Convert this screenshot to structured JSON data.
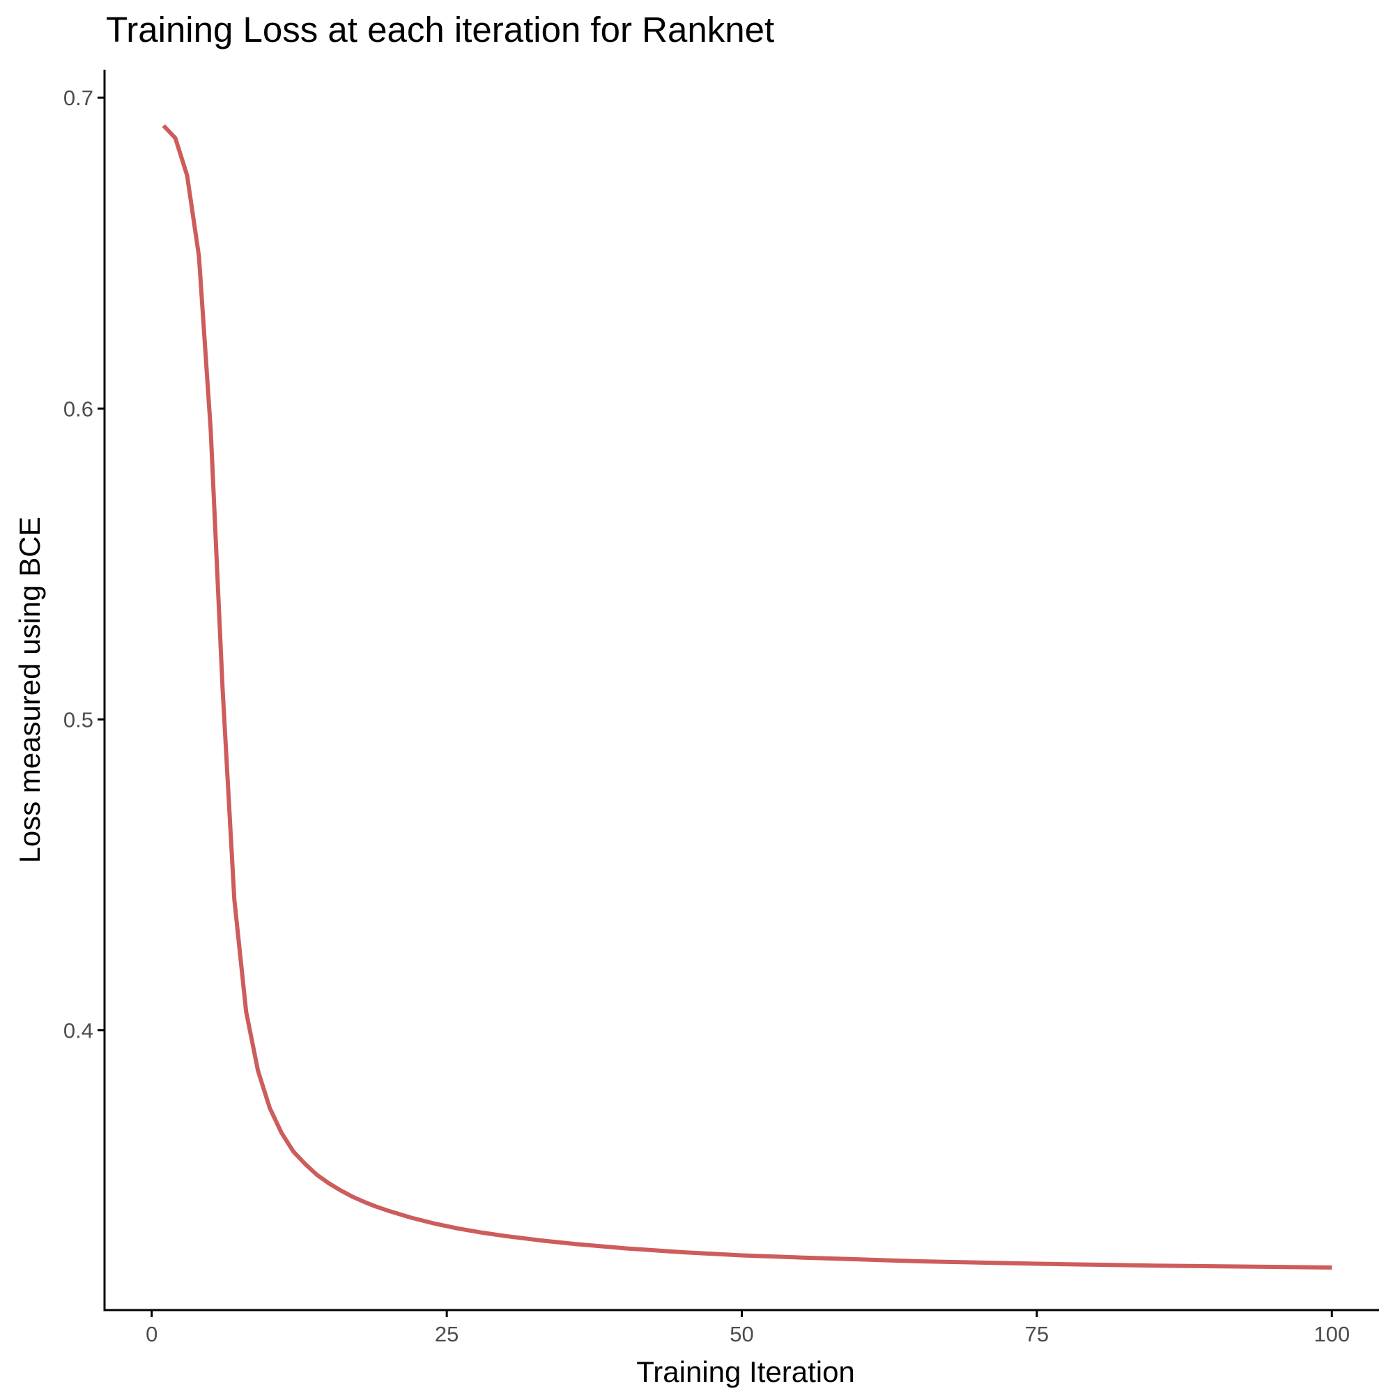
{
  "chart_data": {
    "type": "line",
    "title": "Training Loss at each iteration for Ranknet",
    "xlabel": "Training Iteration",
    "ylabel": "Loss measured using BCE",
    "xlim": [
      -4,
      104
    ],
    "ylim": [
      0.31,
      0.709
    ],
    "x_ticks": [
      0,
      25,
      50,
      75,
      100
    ],
    "x_tick_labels": [
      "0",
      "25",
      "50",
      "75",
      "100"
    ],
    "y_ticks": [
      0.4,
      0.5,
      0.6,
      0.7
    ],
    "y_tick_labels": [
      "0.4",
      "0.5",
      "0.6",
      "0.7"
    ],
    "grid": false,
    "legend": "none",
    "series": [
      {
        "color": "#cd5c5c",
        "x": [
          1,
          2,
          3,
          4,
          5,
          6,
          7,
          8,
          9,
          10,
          11,
          12,
          13,
          14,
          15,
          16,
          17,
          18,
          19,
          20,
          22,
          24,
          26,
          28,
          30,
          33,
          36,
          40,
          45,
          50,
          55,
          60,
          65,
          70,
          75,
          80,
          85,
          90,
          95,
          100
        ],
        "y": [
          0.691,
          0.687,
          0.675,
          0.649,
          0.593,
          0.51,
          0.442,
          0.406,
          0.387,
          0.375,
          0.367,
          0.361,
          0.357,
          0.3535,
          0.3508,
          0.3485,
          0.3465,
          0.3448,
          0.3433,
          0.342,
          0.3397,
          0.3378,
          0.3362,
          0.3349,
          0.3338,
          0.3324,
          0.3312,
          0.3299,
          0.3286,
          0.3276,
          0.3269,
          0.3263,
          0.3257,
          0.3253,
          0.3249,
          0.3246,
          0.3243,
          0.3241,
          0.3239,
          0.3237
        ]
      }
    ]
  }
}
